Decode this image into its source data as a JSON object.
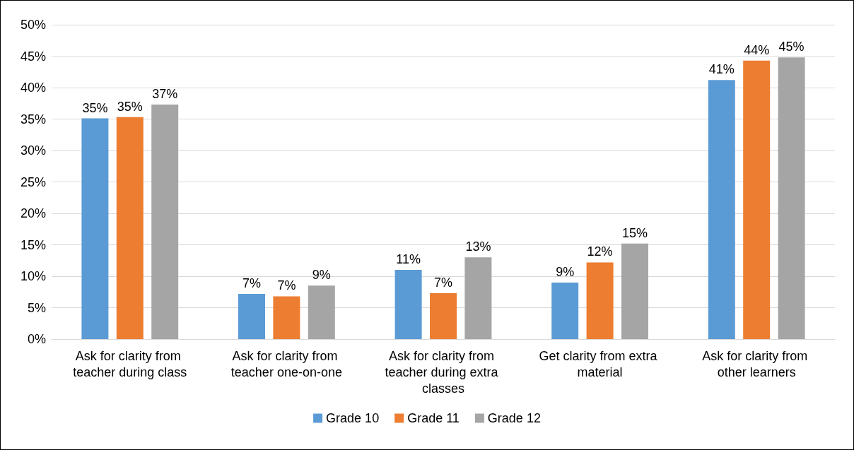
{
  "chart_data": {
    "type": "bar",
    "categories": [
      "Ask for clarity from teacher during class",
      "Ask for clarity from teacher one-on-one",
      "Ask for clarity from teacher during extra classes",
      "Get clarity from extra material",
      "Ask for clarity from other learners"
    ],
    "series": [
      {
        "name": "Grade 10",
        "color": "#5b9bd5",
        "values": [
          35.1,
          7.2,
          11,
          9,
          41.2
        ],
        "value_labels": [
          "35%",
          "7%",
          "11%",
          "9%",
          "41%"
        ]
      },
      {
        "name": "Grade 11",
        "color": "#ed7d31",
        "values": [
          35.3,
          6.8,
          7.3,
          12.2,
          44.3
        ],
        "value_labels": [
          "35%",
          "7%",
          "7%",
          "12%",
          "44%"
        ]
      },
      {
        "name": "Grade 12",
        "color": "#a5a5a5",
        "values": [
          37.3,
          8.5,
          13,
          15.2,
          44.8
        ],
        "value_labels": [
          "37%",
          "9%",
          "13%",
          "15%",
          "45%"
        ]
      }
    ],
    "ylim": [
      0,
      50
    ],
    "yticks": [
      {
        "value": 0,
        "label": "0%"
      },
      {
        "value": 5,
        "label": "5%"
      },
      {
        "value": 10,
        "label": "10%"
      },
      {
        "value": 15,
        "label": "15%"
      },
      {
        "value": 20,
        "label": "20%"
      },
      {
        "value": 25,
        "label": "25%"
      },
      {
        "value": 30,
        "label": "30%"
      },
      {
        "value": 35,
        "label": "35%"
      },
      {
        "value": 40,
        "label": "40%"
      },
      {
        "value": 45,
        "label": "45%"
      },
      {
        "value": 50,
        "label": "50%"
      }
    ],
    "grid": "y",
    "legend": "bottom"
  }
}
